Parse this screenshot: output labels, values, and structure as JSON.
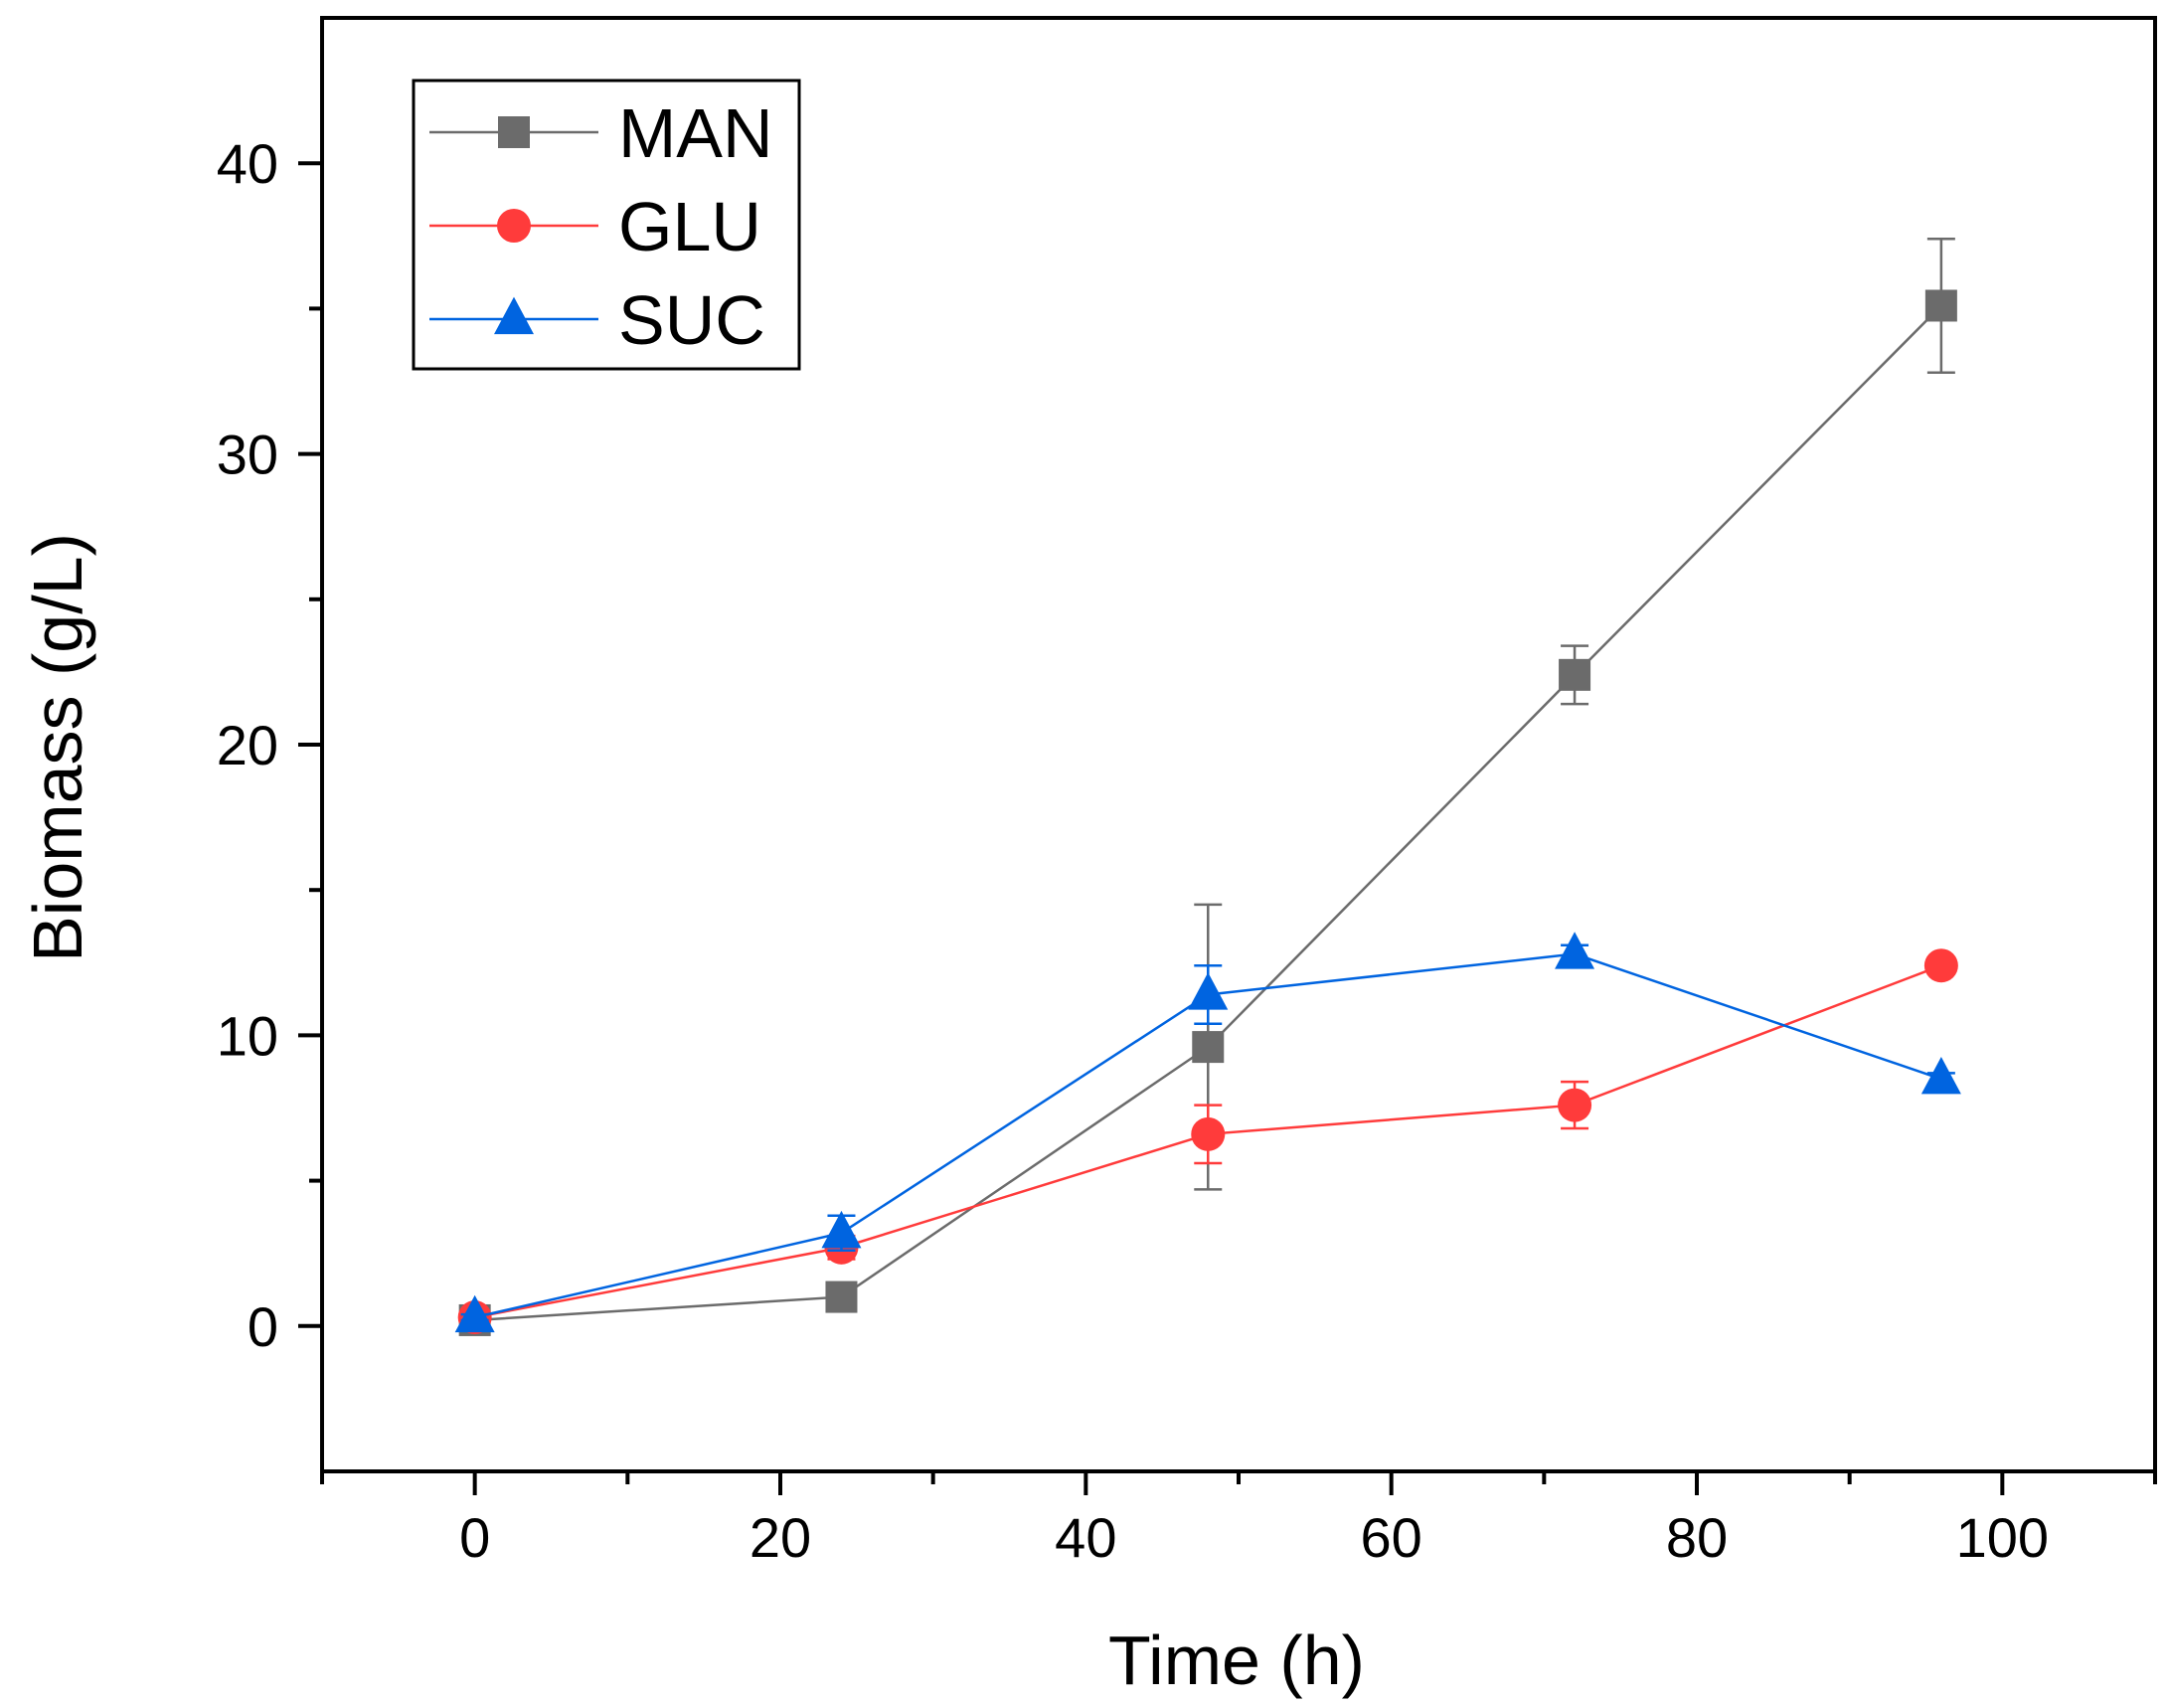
{
  "chart_data": {
    "type": "line",
    "title": "",
    "xlabel": "Time (h)",
    "ylabel": "Biomass (g/L)",
    "xlim": [
      -10,
      110
    ],
    "ylim": [
      -5,
      45
    ],
    "x_ticks": [
      0,
      20,
      40,
      60,
      80,
      100
    ],
    "y_ticks": [
      0,
      10,
      20,
      30,
      40
    ],
    "x_tick_labels": [
      "0",
      "20",
      "40",
      "60",
      "80",
      "100"
    ],
    "y_tick_labels": [
      "0",
      "10",
      "20",
      "30",
      "40"
    ],
    "grid": false,
    "legend_position": "top-left",
    "x": [
      0,
      24,
      48,
      72,
      96
    ],
    "series": [
      {
        "name": "MAN",
        "color": "#6b6b6b",
        "marker": "square",
        "values": [
          0.2,
          1.0,
          9.6,
          22.4,
          35.1
        ],
        "errors": [
          0.1,
          0.2,
          4.9,
          1.0,
          2.3
        ]
      },
      {
        "name": "GLU",
        "color": "#ff3b3b",
        "marker": "circle",
        "values": [
          0.3,
          2.7,
          6.6,
          7.6,
          12.4
        ],
        "errors": [
          0.1,
          0.4,
          1.0,
          0.8,
          0.2
        ]
      },
      {
        "name": "SUC",
        "color": "#0064e0",
        "marker": "triangle",
        "values": [
          0.3,
          3.2,
          11.4,
          12.8,
          8.5
        ],
        "errors": [
          0.1,
          0.6,
          1.0,
          0.3,
          0.2
        ]
      }
    ]
  }
}
